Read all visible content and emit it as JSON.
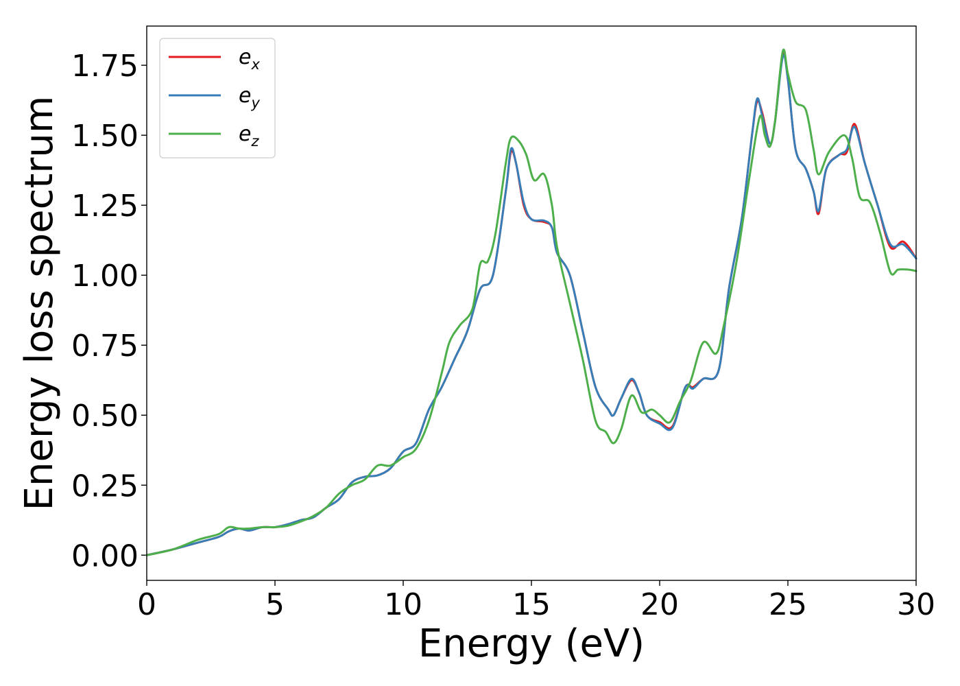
{
  "chart_data": {
    "type": "line",
    "xlabel": "Energy (eV)",
    "ylabel": "Energy loss spectrum",
    "xlim": [
      0,
      30
    ],
    "ylim": [
      -0.09,
      1.89
    ],
    "xticks": [
      0,
      5,
      10,
      15,
      20,
      25,
      30
    ],
    "xtick_labels": [
      "0",
      "5",
      "10",
      "15",
      "20",
      "25",
      "30"
    ],
    "yticks": [
      0.0,
      0.25,
      0.5,
      0.75,
      1.0,
      1.25,
      1.5,
      1.75
    ],
    "ytick_labels": [
      "0.00",
      "0.25",
      "0.50",
      "0.75",
      "1.00",
      "1.25",
      "1.50",
      "1.75"
    ],
    "grid": false,
    "legend_position": "top-left",
    "series": [
      {
        "name": "e_x",
        "label_base": "e",
        "label_sub": "x",
        "color": "#e41a1c",
        "points": [
          [
            0,
            0
          ],
          [
            1,
            0.02
          ],
          [
            2,
            0.045
          ],
          [
            2.8,
            0.065
          ],
          [
            3.2,
            0.085
          ],
          [
            3.6,
            0.095
          ],
          [
            4.0,
            0.088
          ],
          [
            4.5,
            0.1
          ],
          [
            5,
            0.1
          ],
          [
            5.5,
            0.11
          ],
          [
            6,
            0.125
          ],
          [
            6.5,
            0.135
          ],
          [
            7,
            0.17
          ],
          [
            7.5,
            0.2
          ],
          [
            8,
            0.26
          ],
          [
            8.5,
            0.28
          ],
          [
            9,
            0.285
          ],
          [
            9.5,
            0.31
          ],
          [
            10,
            0.37
          ],
          [
            10.5,
            0.4
          ],
          [
            11,
            0.52
          ],
          [
            11.5,
            0.6
          ],
          [
            12,
            0.7
          ],
          [
            12.5,
            0.8
          ],
          [
            13,
            0.95
          ],
          [
            13.5,
            1.0
          ],
          [
            14,
            1.3
          ],
          [
            14.2,
            1.44
          ],
          [
            14.4,
            1.4
          ],
          [
            14.7,
            1.25
          ],
          [
            15,
            1.2
          ],
          [
            15.5,
            1.19
          ],
          [
            15.8,
            1.17
          ],
          [
            16,
            1.08
          ],
          [
            16.5,
            1.0
          ],
          [
            17,
            0.8
          ],
          [
            17.5,
            0.6
          ],
          [
            18,
            0.52
          ],
          [
            18.2,
            0.5
          ],
          [
            18.5,
            0.56
          ],
          [
            18.9,
            0.625
          ],
          [
            19.2,
            0.58
          ],
          [
            19.5,
            0.5
          ],
          [
            20,
            0.475
          ],
          [
            20.5,
            0.46
          ],
          [
            21,
            0.6
          ],
          [
            21.3,
            0.6
          ],
          [
            21.7,
            0.63
          ],
          [
            22.3,
            0.66
          ],
          [
            22.7,
            0.95
          ],
          [
            23.2,
            1.2
          ],
          [
            23.6,
            1.5
          ],
          [
            23.8,
            1.62
          ],
          [
            24.0,
            1.58
          ],
          [
            24.3,
            1.47
          ],
          [
            24.5,
            1.55
          ],
          [
            24.8,
            1.79
          ],
          [
            25.0,
            1.7
          ],
          [
            25.3,
            1.45
          ],
          [
            25.7,
            1.38
          ],
          [
            26,
            1.3
          ],
          [
            26.2,
            1.22
          ],
          [
            26.5,
            1.38
          ],
          [
            27,
            1.43
          ],
          [
            27.3,
            1.44
          ],
          [
            27.6,
            1.54
          ],
          [
            28,
            1.4
          ],
          [
            28.5,
            1.25
          ],
          [
            29,
            1.1
          ],
          [
            29.5,
            1.12
          ],
          [
            30,
            1.06
          ]
        ]
      },
      {
        "name": "e_y",
        "label_base": "e",
        "label_sub": "y",
        "color": "#377eb8",
        "points": [
          [
            0,
            0
          ],
          [
            1,
            0.02
          ],
          [
            2,
            0.045
          ],
          [
            2.8,
            0.065
          ],
          [
            3.2,
            0.085
          ],
          [
            3.6,
            0.095
          ],
          [
            4.0,
            0.088
          ],
          [
            4.5,
            0.1
          ],
          [
            5,
            0.1
          ],
          [
            5.5,
            0.11
          ],
          [
            6,
            0.125
          ],
          [
            6.5,
            0.135
          ],
          [
            7,
            0.17
          ],
          [
            7.5,
            0.2
          ],
          [
            8,
            0.26
          ],
          [
            8.5,
            0.28
          ],
          [
            9,
            0.285
          ],
          [
            9.5,
            0.31
          ],
          [
            10,
            0.37
          ],
          [
            10.5,
            0.4
          ],
          [
            11,
            0.52
          ],
          [
            11.5,
            0.6
          ],
          [
            12,
            0.7
          ],
          [
            12.5,
            0.8
          ],
          [
            13,
            0.95
          ],
          [
            13.5,
            1.0
          ],
          [
            14,
            1.3
          ],
          [
            14.2,
            1.45
          ],
          [
            14.4,
            1.4
          ],
          [
            14.7,
            1.26
          ],
          [
            15,
            1.2
          ],
          [
            15.5,
            1.195
          ],
          [
            15.8,
            1.17
          ],
          [
            16,
            1.08
          ],
          [
            16.5,
            1.0
          ],
          [
            17,
            0.8
          ],
          [
            17.5,
            0.6
          ],
          [
            18,
            0.52
          ],
          [
            18.2,
            0.5
          ],
          [
            18.5,
            0.56
          ],
          [
            18.9,
            0.63
          ],
          [
            19.2,
            0.58
          ],
          [
            19.5,
            0.5
          ],
          [
            20,
            0.47
          ],
          [
            20.5,
            0.455
          ],
          [
            21,
            0.6
          ],
          [
            21.3,
            0.595
          ],
          [
            21.7,
            0.63
          ],
          [
            22.3,
            0.66
          ],
          [
            22.7,
            0.95
          ],
          [
            23.2,
            1.2
          ],
          [
            23.6,
            1.5
          ],
          [
            23.8,
            1.63
          ],
          [
            24.0,
            1.57
          ],
          [
            24.3,
            1.47
          ],
          [
            24.5,
            1.55
          ],
          [
            24.8,
            1.78
          ],
          [
            25.0,
            1.7
          ],
          [
            25.3,
            1.45
          ],
          [
            25.7,
            1.38
          ],
          [
            26,
            1.3
          ],
          [
            26.2,
            1.23
          ],
          [
            26.5,
            1.38
          ],
          [
            27,
            1.43
          ],
          [
            27.3,
            1.45
          ],
          [
            27.6,
            1.53
          ],
          [
            28,
            1.4
          ],
          [
            28.5,
            1.25
          ],
          [
            29,
            1.11
          ],
          [
            29.5,
            1.11
          ],
          [
            30,
            1.06
          ]
        ]
      },
      {
        "name": "e_z",
        "label_base": "e",
        "label_sub": "z",
        "color": "#4daf4a",
        "points": [
          [
            0,
            0
          ],
          [
            1,
            0.02
          ],
          [
            2,
            0.055
          ],
          [
            2.8,
            0.075
          ],
          [
            3.2,
            0.1
          ],
          [
            3.6,
            0.095
          ],
          [
            4.0,
            0.095
          ],
          [
            4.5,
            0.1
          ],
          [
            5,
            0.1
          ],
          [
            5.5,
            0.105
          ],
          [
            6,
            0.12
          ],
          [
            6.5,
            0.14
          ],
          [
            7,
            0.17
          ],
          [
            7.5,
            0.22
          ],
          [
            8,
            0.25
          ],
          [
            8.5,
            0.27
          ],
          [
            9,
            0.32
          ],
          [
            9.5,
            0.32
          ],
          [
            10,
            0.35
          ],
          [
            10.5,
            0.38
          ],
          [
            11,
            0.48
          ],
          [
            11.5,
            0.65
          ],
          [
            11.8,
            0.76
          ],
          [
            12.2,
            0.82
          ],
          [
            12.7,
            0.88
          ],
          [
            13,
            1.04
          ],
          [
            13.3,
            1.05
          ],
          [
            13.6,
            1.15
          ],
          [
            14,
            1.4
          ],
          [
            14.2,
            1.49
          ],
          [
            14.5,
            1.48
          ],
          [
            14.8,
            1.43
          ],
          [
            15.1,
            1.34
          ],
          [
            15.5,
            1.36
          ],
          [
            15.8,
            1.25
          ],
          [
            16,
            1.1
          ],
          [
            16.5,
            0.9
          ],
          [
            17,
            0.7
          ],
          [
            17.5,
            0.48
          ],
          [
            17.9,
            0.44
          ],
          [
            18.2,
            0.4
          ],
          [
            18.5,
            0.45
          ],
          [
            18.9,
            0.57
          ],
          [
            19.3,
            0.51
          ],
          [
            19.7,
            0.52
          ],
          [
            20,
            0.5
          ],
          [
            20.4,
            0.475
          ],
          [
            20.8,
            0.55
          ],
          [
            21.2,
            0.62
          ],
          [
            21.7,
            0.76
          ],
          [
            22.2,
            0.72
          ],
          [
            22.5,
            0.82
          ],
          [
            23,
            1.05
          ],
          [
            23.5,
            1.35
          ],
          [
            23.9,
            1.565
          ],
          [
            24.1,
            1.5
          ],
          [
            24.3,
            1.46
          ],
          [
            24.5,
            1.55
          ],
          [
            24.8,
            1.8
          ],
          [
            25.0,
            1.72
          ],
          [
            25.3,
            1.62
          ],
          [
            25.7,
            1.59
          ],
          [
            26.0,
            1.45
          ],
          [
            26.2,
            1.36
          ],
          [
            26.6,
            1.44
          ],
          [
            27.2,
            1.5
          ],
          [
            27.5,
            1.42
          ],
          [
            27.8,
            1.28
          ],
          [
            28.2,
            1.26
          ],
          [
            28.6,
            1.15
          ],
          [
            29,
            1.01
          ],
          [
            29.3,
            1.02
          ],
          [
            29.7,
            1.02
          ],
          [
            30,
            1.015
          ]
        ]
      }
    ]
  }
}
